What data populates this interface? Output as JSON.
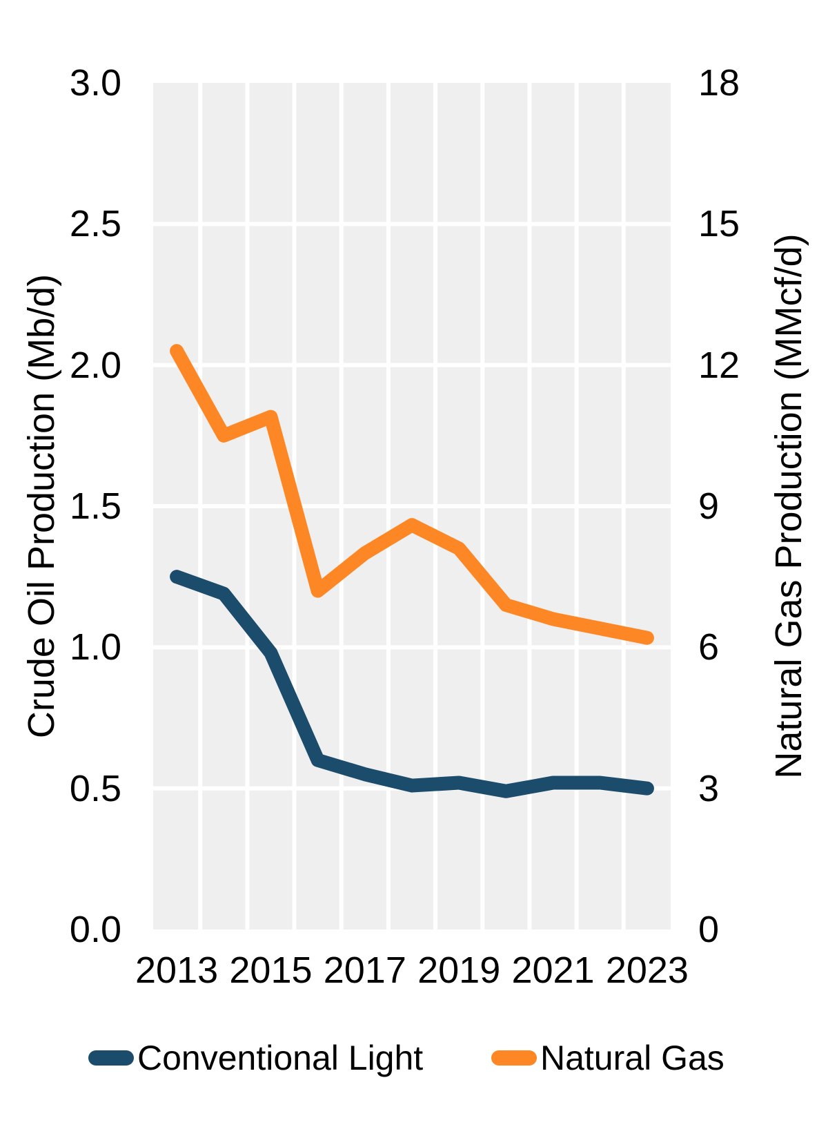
{
  "chart_data": {
    "type": "line",
    "x": [
      2013,
      2014,
      2015,
      2016,
      2017,
      2018,
      2019,
      2020,
      2021,
      2022,
      2023
    ],
    "x_tick_labels": [
      "2013",
      "2015",
      "2017",
      "2019",
      "2021",
      "2023"
    ],
    "left_axis": {
      "label": "Crude Oil Production (Mb/d)",
      "min": 0,
      "max": 3,
      "tick_labels": [
        "3.0",
        "2.5",
        "2.0",
        "1.5",
        "1.0",
        "0.5",
        "0.0"
      ]
    },
    "right_axis": {
      "label": "Natural Gas Production (MMcf/d)",
      "min": 0,
      "max": 18,
      "tick_labels": [
        "18",
        "15",
        "12",
        "9",
        "6",
        "3",
        "0"
      ]
    },
    "series": [
      {
        "name": "Conventional Light",
        "axis": "left",
        "color": "#1c4c6b",
        "values": [
          1.25,
          1.19,
          0.98,
          0.6,
          0.55,
          0.51,
          0.52,
          0.49,
          0.52,
          0.52,
          0.5
        ]
      },
      {
        "name": "Natural Gas",
        "axis": "right",
        "color": "#fd8724",
        "values": [
          12.3,
          10.5,
          10.9,
          7.2,
          8.0,
          8.6,
          8.1,
          6.9,
          6.6,
          6.4,
          6.2
        ]
      }
    ],
    "grid": true,
    "legend_position": "bottom",
    "plot_background": "#efefef",
    "gridline_color": "#ffffff"
  },
  "legend": {
    "items": [
      {
        "label": "Conventional Light",
        "color": "#1c4c6b"
      },
      {
        "label": "Natural Gas",
        "color": "#fd8724"
      }
    ]
  }
}
